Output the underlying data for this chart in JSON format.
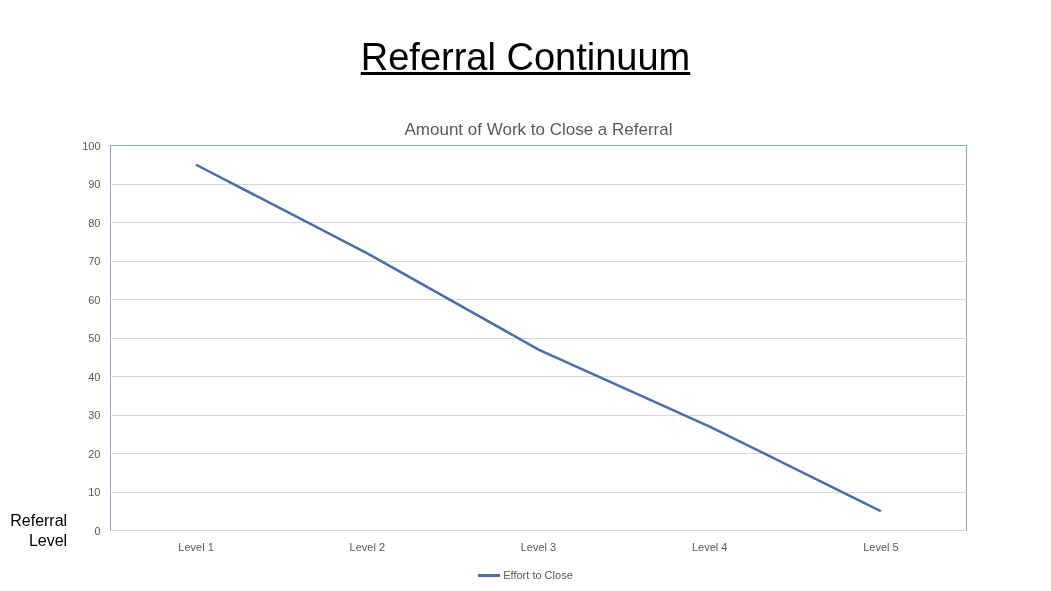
{
  "chart_data": {
    "type": "line",
    "title": "Referral Continuum",
    "subtitle": "Amount of Work to Close a Referral",
    "xlabel": "Referral Level",
    "categories": [
      "Level 1",
      "Level 2",
      "Level 3",
      "Level 4",
      "Level 5"
    ],
    "series": [
      {
        "name": "Effort to Close",
        "color": "#4a6ea8",
        "values": [
          95,
          72,
          47,
          27,
          5
        ]
      }
    ],
    "ylim": [
      0,
      100
    ],
    "yticks": [
      0,
      10,
      20,
      30,
      40,
      50,
      60,
      70,
      80,
      90,
      100
    ],
    "grid": "y",
    "legend": "bottom"
  }
}
